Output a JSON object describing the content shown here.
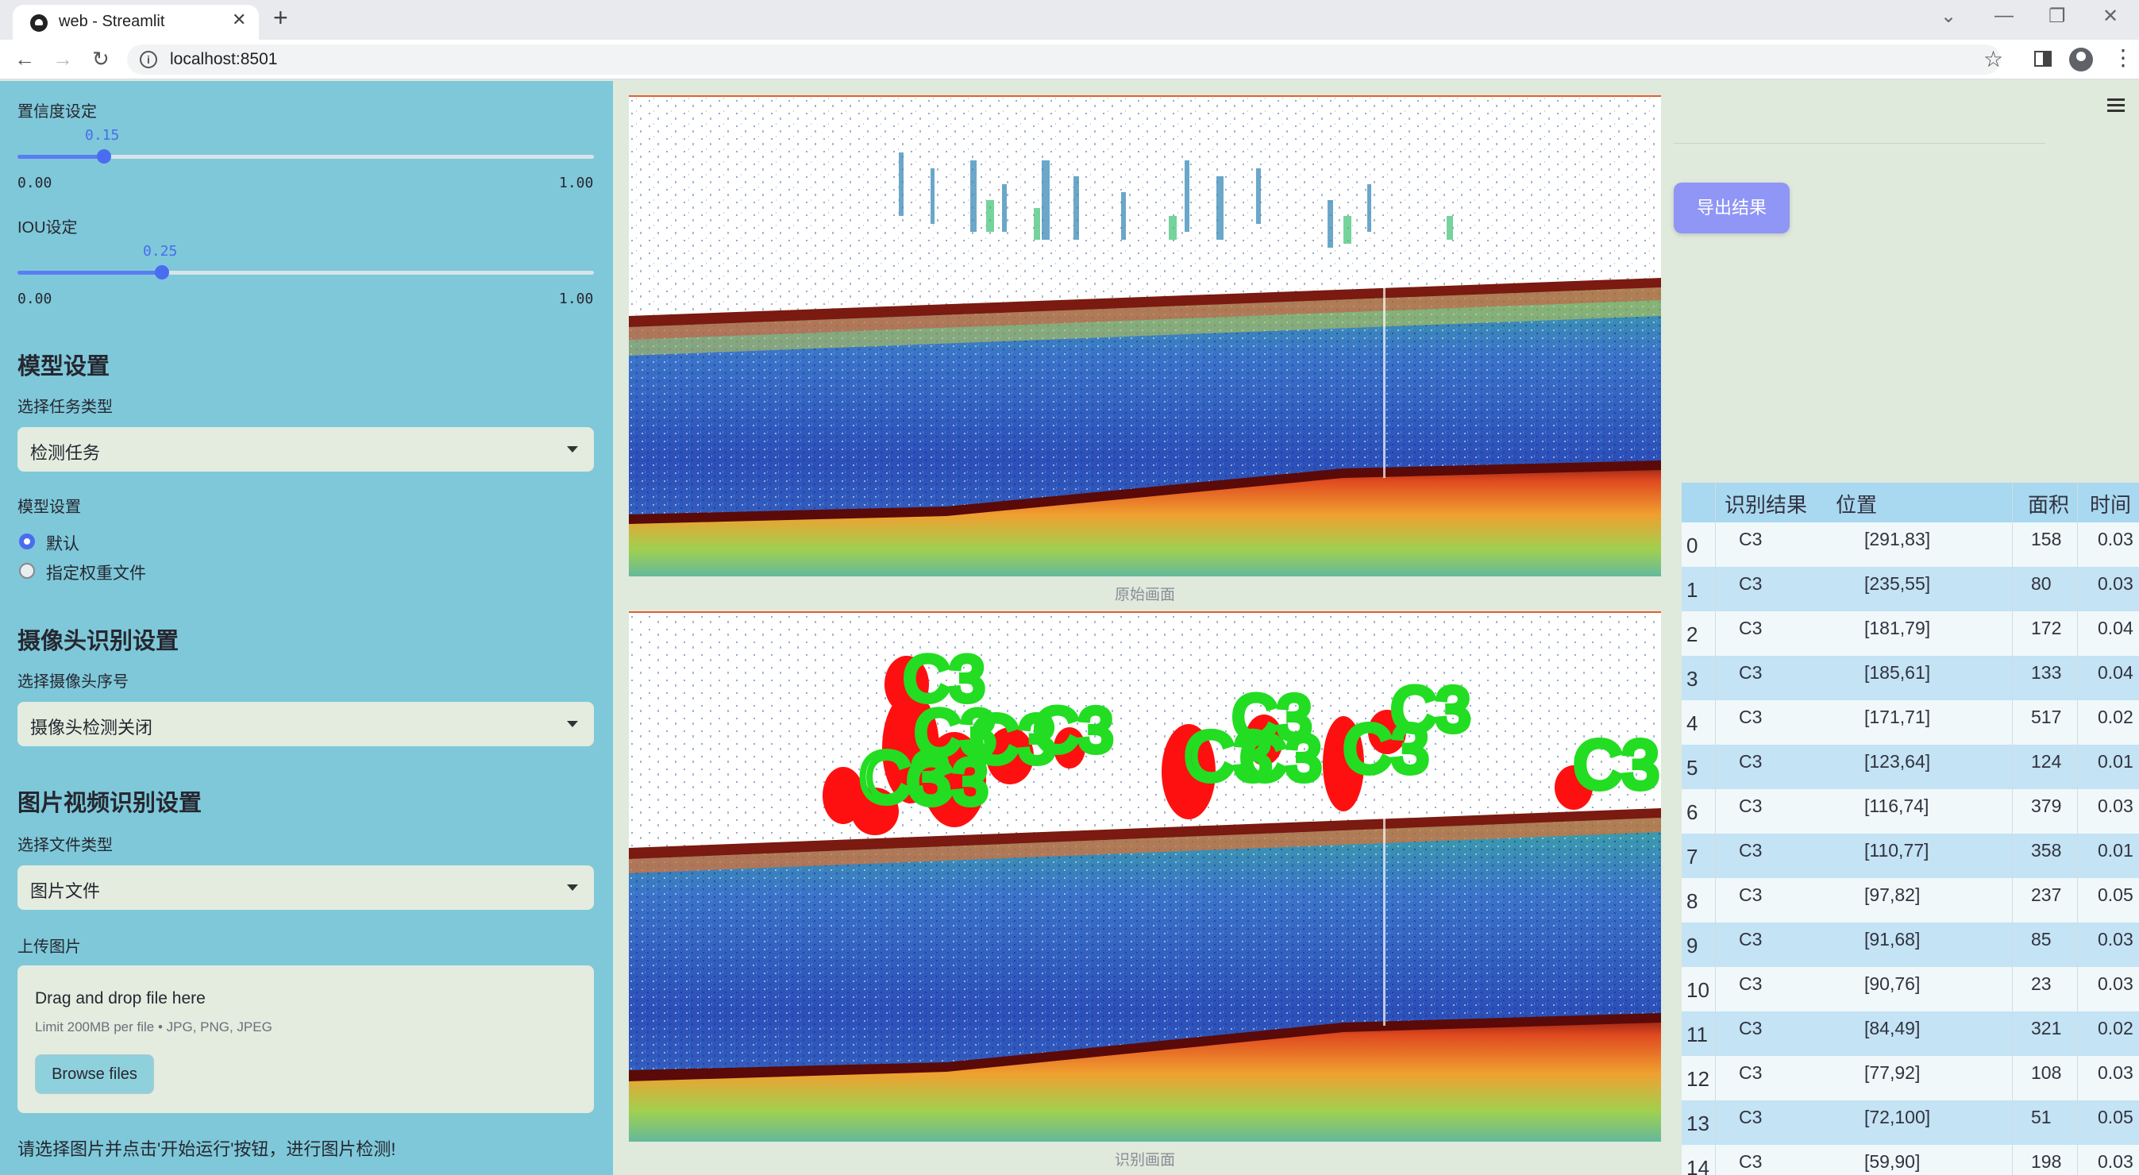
{
  "browser": {
    "tab_title": "web - Streamlit",
    "url": "localhost:8501"
  },
  "sidebar": {
    "confidence": {
      "label": "置信度设定",
      "value": "0.15",
      "level": 0.15,
      "min": "0.00",
      "max": "1.00"
    },
    "iou": {
      "label": "IOU设定",
      "value": "0.25",
      "level": 0.25,
      "min": "0.00",
      "max": "1.00"
    },
    "model_section": {
      "heading": "模型设置",
      "task_label": "选择任务类型",
      "task_value": "检测任务",
      "model_label": "模型设置",
      "options": [
        "默认",
        "指定权重文件"
      ],
      "selected": "默认"
    },
    "camera_section": {
      "heading": "摄像头识别设置",
      "camera_label": "选择摄像头序号",
      "camera_value": "摄像头检测关闭"
    },
    "media_section": {
      "heading": "图片视频识别设置",
      "filetype_label": "选择文件类型",
      "filetype_value": "图片文件",
      "upload_label": "上传图片",
      "drop_title": "Drag and drop file here",
      "drop_limit": "Limit 200MB per file • JPG, PNG, JPEG",
      "browse_button": "Browse files"
    },
    "hint": "请选择图片并点击'开始运行'按钮，进行图片检测!"
  },
  "main": {
    "original_caption": "原始画面",
    "detected_caption": "识别画面",
    "detection_label": "C3",
    "export_button": "导出结果",
    "table": {
      "columns": [
        "识别结果",
        "位置",
        "面积",
        "时间"
      ],
      "rows": [
        {
          "idx": "0",
          "result": "C3",
          "pos": "[291,83]",
          "area": "158",
          "time": "0.03"
        },
        {
          "idx": "1",
          "result": "C3",
          "pos": "[235,55]",
          "area": "80",
          "time": "0.03"
        },
        {
          "idx": "2",
          "result": "C3",
          "pos": "[181,79]",
          "area": "172",
          "time": "0.04"
        },
        {
          "idx": "3",
          "result": "C3",
          "pos": "[185,61]",
          "area": "133",
          "time": "0.04"
        },
        {
          "idx": "4",
          "result": "C3",
          "pos": "[171,71]",
          "area": "517",
          "time": "0.02"
        },
        {
          "idx": "5",
          "result": "C3",
          "pos": "[123,64]",
          "area": "124",
          "time": "0.01"
        },
        {
          "idx": "6",
          "result": "C3",
          "pos": "[116,74]",
          "area": "379",
          "time": "0.03"
        },
        {
          "idx": "7",
          "result": "C3",
          "pos": "[110,77]",
          "area": "358",
          "time": "0.01"
        },
        {
          "idx": "8",
          "result": "C3",
          "pos": "[97,82]",
          "area": "237",
          "time": "0.05"
        },
        {
          "idx": "9",
          "result": "C3",
          "pos": "[91,68]",
          "area": "85",
          "time": "0.03"
        },
        {
          "idx": "10",
          "result": "C3",
          "pos": "[90,76]",
          "area": "23",
          "time": "0.03"
        },
        {
          "idx": "11",
          "result": "C3",
          "pos": "[84,49]",
          "area": "321",
          "time": "0.02"
        },
        {
          "idx": "12",
          "result": "C3",
          "pos": "[77,92]",
          "area": "108",
          "time": "0.03"
        },
        {
          "idx": "13",
          "result": "C3",
          "pos": "[72,100]",
          "area": "51",
          "time": "0.05"
        },
        {
          "idx": "14",
          "result": "C3",
          "pos": "[59,90]",
          "area": "198",
          "time": "0.03"
        }
      ]
    }
  },
  "colors": {
    "sidebar_bg": "#7ec8d9",
    "accent": "#4a6cf0",
    "export_button": "#8f96f5",
    "detection_box": "#22dd22",
    "detection_blob": "#ff1010"
  }
}
